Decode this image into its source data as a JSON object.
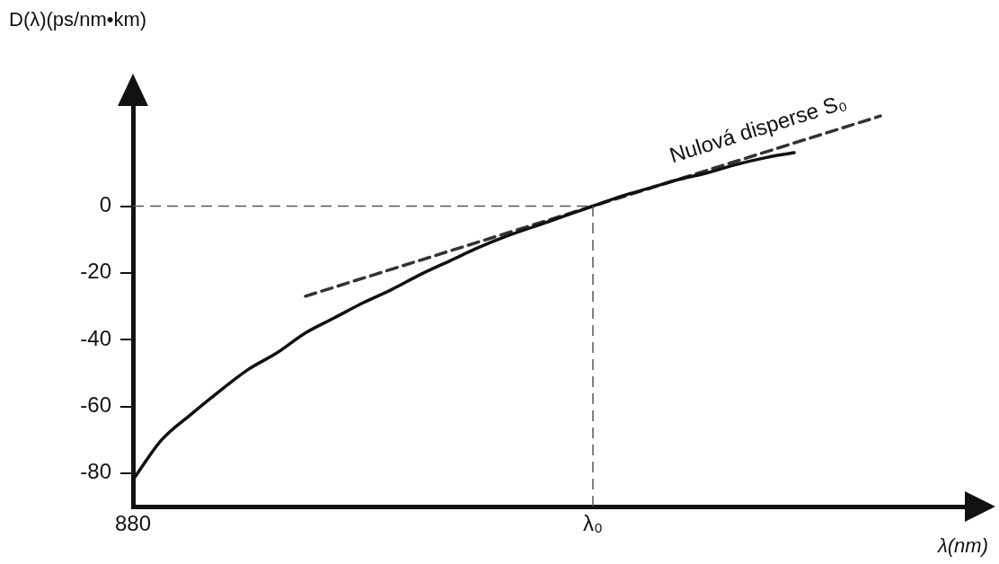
{
  "chart_data": {
    "type": "line",
    "xlabel": "λ(nm)",
    "ylabel": "D(λ)(ps/nm•km)",
    "categories": [
      "880",
      null,
      null,
      null,
      null,
      null,
      null,
      null,
      null,
      null,
      null,
      null,
      null,
      null,
      null,
      null,
      "λ₀",
      null,
      null,
      null,
      null,
      null,
      null,
      null,
      null,
      null,
      null,
      null,
      null,
      null
    ],
    "ylim": [
      -90,
      30
    ],
    "yticks": [
      0,
      -20,
      -40,
      -60,
      -80
    ],
    "grid": false,
    "legend": false,
    "marker": "none",
    "line_style": "solid",
    "series": [
      {
        "color": "#111111",
        "values": [
          -82,
          -70,
          -62.5,
          -55.5,
          -49,
          -44,
          -38,
          -33.5,
          -29,
          -25,
          -20.5,
          -16.5,
          -12.5,
          -9,
          -6,
          -3,
          0,
          3,
          5.5,
          8,
          10,
          12.5,
          14.5,
          16,
          null,
          null,
          null,
          null,
          null,
          null
        ]
      },
      {
        "name": "Nulová disperse S₀",
        "color": "#333333",
        "line_style": "dashed",
        "values": [
          null,
          null,
          null,
          null,
          null,
          null,
          -27,
          null,
          null,
          null,
          null,
          null,
          null,
          null,
          null,
          null,
          null,
          null,
          null,
          null,
          null,
          null,
          null,
          null,
          null,
          null,
          27,
          null,
          null,
          null
        ]
      }
    ],
    "ref_lines": [
      {
        "axis": "y",
        "value": 0,
        "line_style": "dashed",
        "color": "#555555"
      },
      {
        "axis": "x",
        "value": "λ₀",
        "line_style": "dashed",
        "color": "#555555"
      }
    ]
  }
}
